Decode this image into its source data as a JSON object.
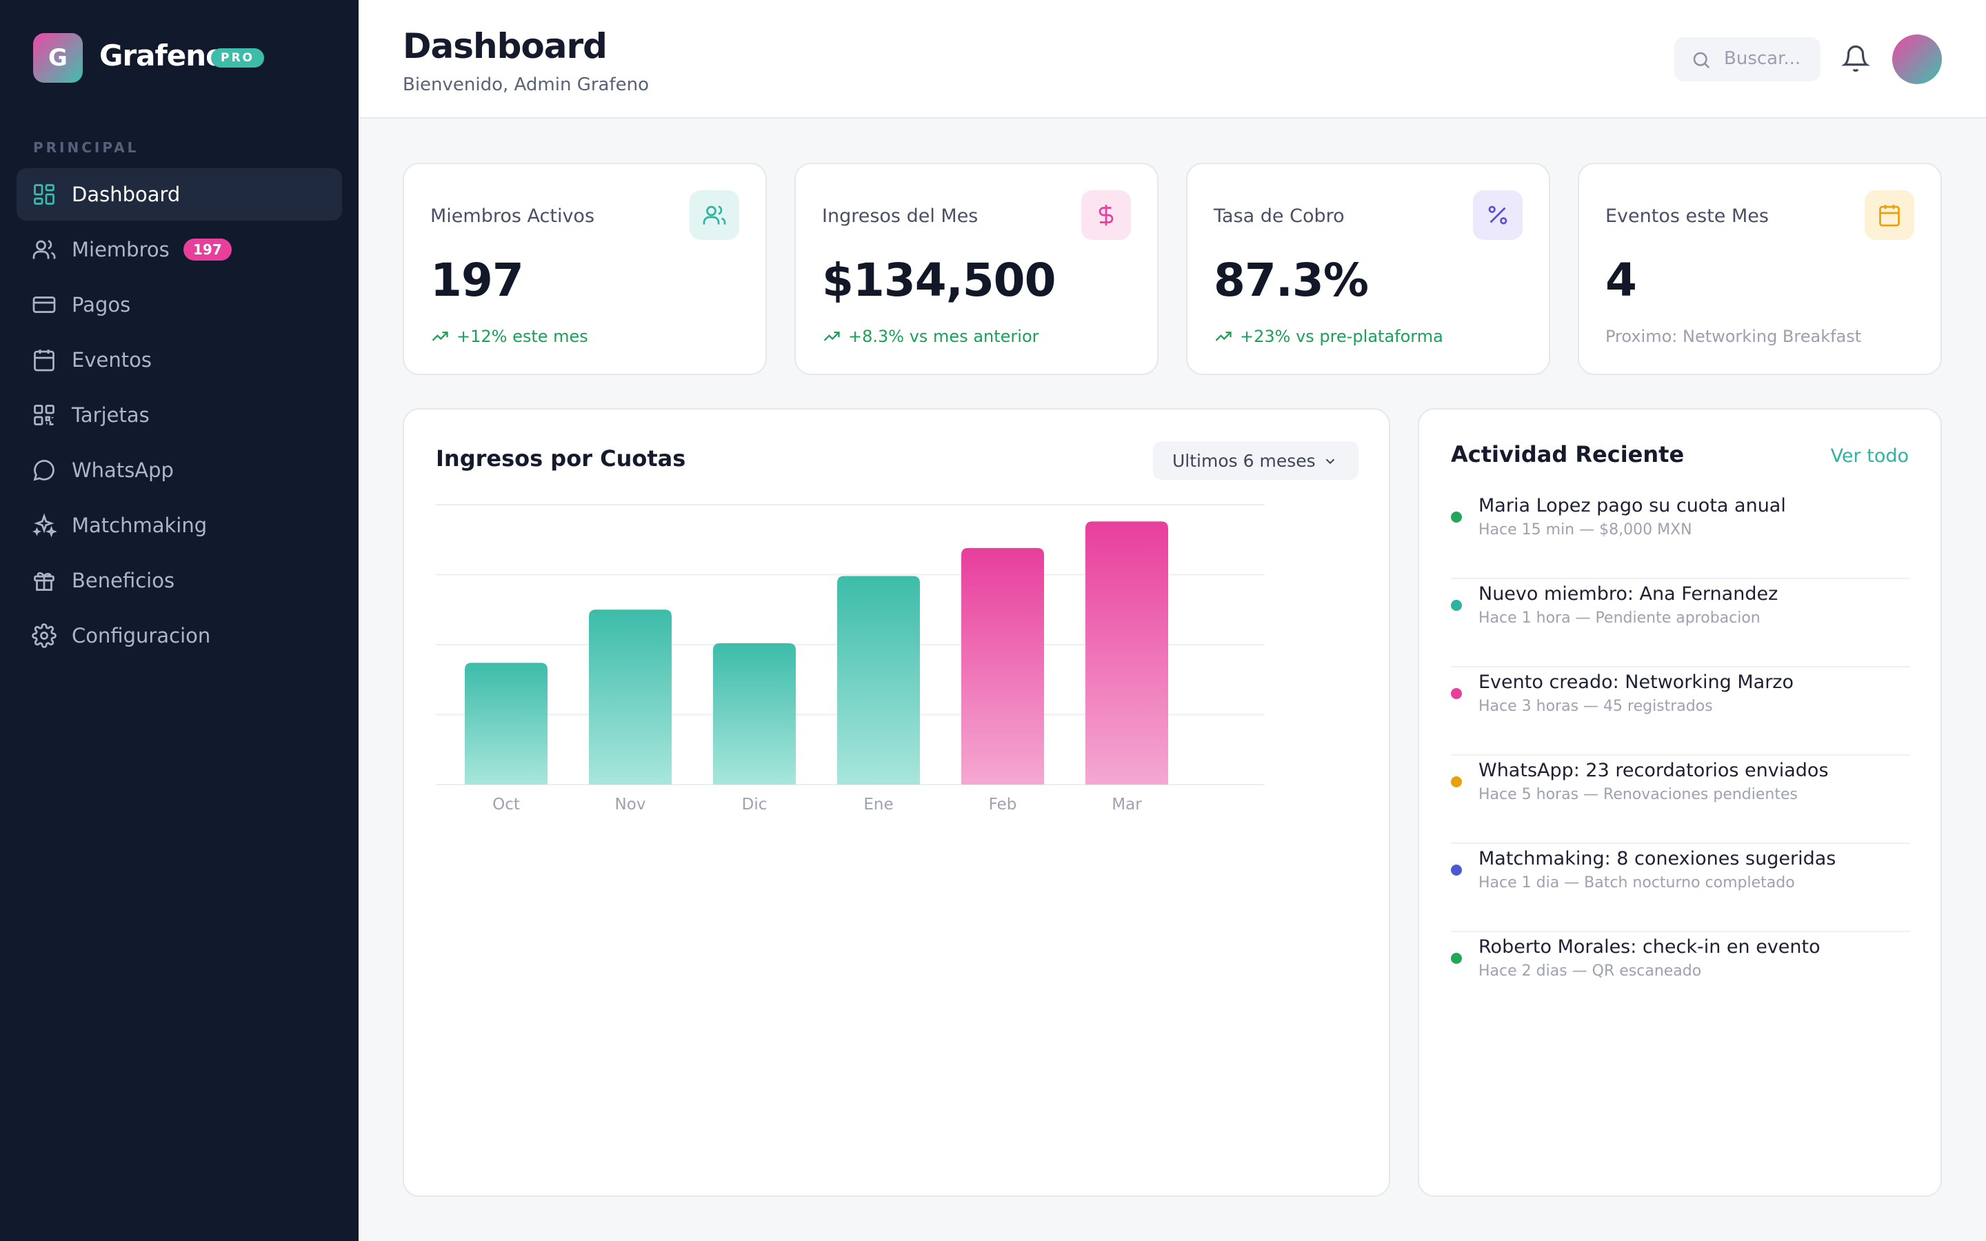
{
  "brand": {
    "logo_letter": "G",
    "name": "Grafeno",
    "badge": "PRO"
  },
  "sidebar": {
    "section": "PRINCIPAL",
    "items": [
      {
        "label": "Dashboard",
        "icon": "grid-icon",
        "active": true
      },
      {
        "label": "Miembros",
        "icon": "users-icon",
        "badge": "197"
      },
      {
        "label": "Pagos",
        "icon": "credit-card-icon"
      },
      {
        "label": "Eventos",
        "icon": "calendar-icon"
      },
      {
        "label": "Tarjetas",
        "icon": "qr-code-icon"
      },
      {
        "label": "WhatsApp",
        "icon": "chat-bubble-icon"
      },
      {
        "label": "Matchmaking",
        "icon": "sparkles-icon"
      },
      {
        "label": "Beneficios",
        "icon": "gift-icon"
      },
      {
        "label": "Configuracion",
        "icon": "gear-icon"
      }
    ]
  },
  "header": {
    "title": "Dashboard",
    "subtitle": "Bienvenido, Admin Grafeno",
    "search_placeholder": "Buscar..."
  },
  "stats": [
    {
      "label": "Miembros Activos",
      "value": "197",
      "trend": "+12% este mes",
      "icon": "users-icon",
      "color": "#2fb39f"
    },
    {
      "label": "Ingresos del Mes",
      "value": "$134,500",
      "trend": "+8.3% vs mes anterior",
      "icon": "dollar-icon",
      "color": "#e83e9c"
    },
    {
      "label": "Tasa de Cobro",
      "value": "87.3%",
      "trend": "+23% vs pre-plataforma",
      "icon": "percent-icon",
      "color": "#5b4fd6"
    },
    {
      "label": "Eventos este Mes",
      "value": "4",
      "trend": "Proximo: Networking Breakfast",
      "icon": "calendar-icon",
      "color": "#e9a10b"
    }
  ],
  "chart": {
    "title": "Ingresos por Cuotas",
    "range": "Ultimos 6 meses"
  },
  "chart_data": {
    "type": "bar",
    "title": "Ingresos por Cuotas",
    "categories": [
      "Oct",
      "Nov",
      "Dic",
      "Ene",
      "Feb",
      "Mar"
    ],
    "values": [
      87,
      125,
      101,
      149,
      169,
      188
    ],
    "colors": [
      "#3dbcaa",
      "#3dbcaa",
      "#3dbcaa",
      "#3dbcaa",
      "#e83e9c",
      "#e83e9c"
    ],
    "ylim": [
      0,
      200
    ],
    "grid": true
  },
  "activity": {
    "title": "Actividad Reciente",
    "link": "Ver todo",
    "items": [
      {
        "title": "Maria Lopez pago su cuota anual",
        "sub": "Hace 15 min — $8,000 MXN",
        "color": "#22a75a"
      },
      {
        "title": "Nuevo miembro: Ana Fernandez",
        "sub": "Hace 1 hora — Pendiente aprobacion",
        "color": "#2fb39f"
      },
      {
        "title": "Evento creado: Networking Marzo",
        "sub": "Hace 3 horas — 45 registrados",
        "color": "#e83e9c"
      },
      {
        "title": "WhatsApp: 23 recordatorios enviados",
        "sub": "Hace 5 horas — Renovaciones pendientes",
        "color": "#e9a10b"
      },
      {
        "title": "Matchmaking: 8 conexiones sugeridas",
        "sub": "Hace 1 dia — Batch nocturno completado",
        "color": "#4a5ad0"
      },
      {
        "title": "Roberto Morales: check-in en evento",
        "sub": "Hace 2 dias — QR escaneado",
        "color": "#22a75a"
      }
    ]
  }
}
